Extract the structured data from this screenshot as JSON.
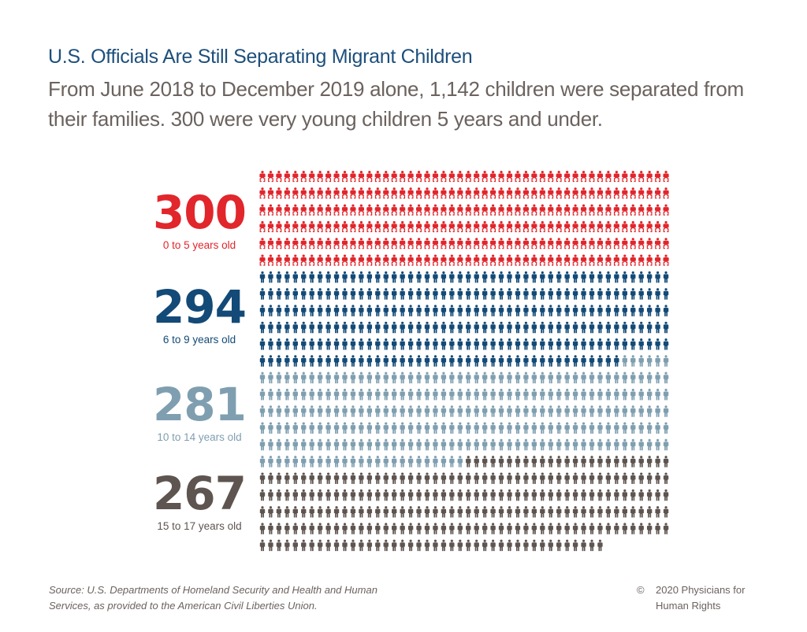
{
  "header": {
    "title": "U.S. Officials Are Still Separating Migrant Children",
    "subtitle": "From June 2018 to December 2019 alone, 1,142 children were separated from their families. 300 were very young children 5 years and under."
  },
  "chart_data": {
    "type": "pictogram",
    "title": "U.S. Officials Are Still Separating Migrant Children",
    "icons_per_row": 50,
    "unit": "1 icon = 1 child",
    "total": 1142,
    "series": [
      {
        "name": "0 to 5 years old",
        "value": 300,
        "label": "300",
        "color": "#e1262c",
        "icon": "baby-icon"
      },
      {
        "name": "6 to 9 years old",
        "value": 294,
        "label": "294",
        "color": "#134a77",
        "icon": "child-icon"
      },
      {
        "name": "10 to 14 years old",
        "value": 281,
        "label": "281",
        "color": "#7f9fb0",
        "icon": "child-icon"
      },
      {
        "name": "15 to 17 years old",
        "value": 267,
        "label": "267",
        "color": "#5e5450",
        "icon": "teen-icon"
      }
    ]
  },
  "footer": {
    "source": "Source: U.S. Departments of Homeland Security and Health and Human Services, as provided to the American Civil Liberties Union.",
    "copyright_symbol": "©",
    "copyright_line1": "2020 Physicians for",
    "copyright_line2": "Human Rights"
  }
}
